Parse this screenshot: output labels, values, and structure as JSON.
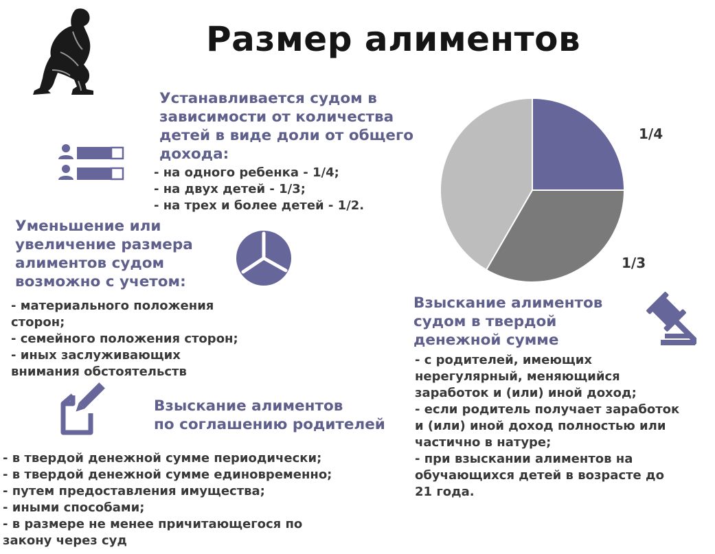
{
  "title": "Размер алиментов",
  "colors": {
    "accent": "#66669a",
    "heading": "#5f5f8c",
    "text": "#383838",
    "pie_dark": "#7a7a7a",
    "pie_light": "#bdbdbd"
  },
  "icons": {
    "thinker": "thinker-figure-icon",
    "people_bars": "people-bars-icon",
    "pie_small": "pie-chart-icon",
    "gavel": "gavel-icon",
    "document": "document-pen-icon"
  },
  "court_share": {
    "heading": "Устанавливается судом в зависимости от количества детей в виде доли от общего дохода:",
    "heading_lines": [
      "Устанавливается судом в",
      "зависимости от количества",
      "детей в виде доли от общего",
      "дохода:"
    ],
    "items": [
      "- на одного ребенка - 1/4;",
      "- на двух детей - 1/3;",
      "- на трех и более детей - 1/2."
    ]
  },
  "change": {
    "heading_lines": [
      "Уменьшение или",
      "увеличение размера",
      "алиментов судом",
      "возможно с учетом:"
    ],
    "items": [
      "- материального положения",
      "сторон;",
      "- семейного положения сторон;",
      "- иных заслуживающих",
      "внимания обстоятельств"
    ]
  },
  "fixed_sum": {
    "heading_lines": [
      "Взыскание алиментов",
      "судом в твердой",
      "денежной сумме"
    ],
    "items": [
      "- с родителей, имеющих",
      "нерегулярный, меняющийся",
      "заработок и (или) иной доход;",
      "- если родитель получает заработок",
      "и (или) иной доход полностью или",
      "частично в натуре;",
      "- при взыскании алиментов на",
      "обучающихся детей в возрасте до",
      "21 года."
    ]
  },
  "agreement": {
    "heading_lines": [
      "Взыскание алиментов",
      "по соглашению родителей"
    ],
    "items": [
      "- в твердой денежной сумме периодически;",
      "- в твердой денежной сумме единовременно;",
      "- путем предоставления имущества;",
      "- иными способами;",
      "- в размере не менее причитающегося по",
      "закону через суд"
    ]
  },
  "chart_data": {
    "type": "pie",
    "slices": [
      {
        "label": "1/4",
        "value": 0.25,
        "color": "#66669a"
      },
      {
        "label": "1/3",
        "value": 0.3333,
        "color": "#7a7a7a"
      },
      {
        "label": "",
        "value": 0.4167,
        "color": "#bdbdbd"
      }
    ]
  }
}
